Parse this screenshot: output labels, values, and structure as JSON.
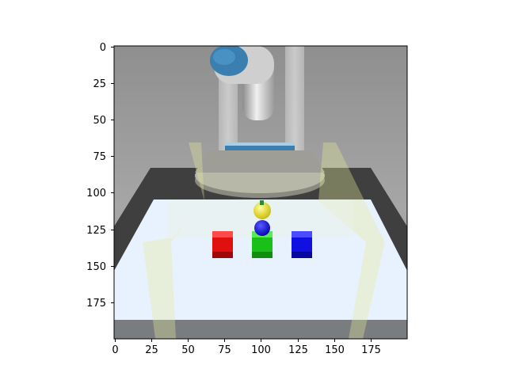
{
  "figure": {
    "kind": "image-plot",
    "scene": "robot arm above a table with colored blocks and spheres"
  },
  "axes": {
    "x_ticks": [
      "0",
      "25",
      "50",
      "75",
      "100",
      "125",
      "150",
      "175"
    ],
    "y_ticks": [
      "0",
      "25",
      "50",
      "75",
      "100",
      "125",
      "150",
      "175"
    ],
    "xlim": [
      0,
      200
    ],
    "ylim": [
      200,
      0
    ]
  },
  "scene_objects": {
    "cubes": [
      {
        "name": "red-cube",
        "color": "#e01010"
      },
      {
        "name": "green-cube",
        "color": "#18c018"
      },
      {
        "name": "blue-cube",
        "color": "#1010e0"
      }
    ],
    "spheres": [
      {
        "name": "yellow-sphere",
        "color": "#f0e010"
      },
      {
        "name": "blue-sphere",
        "color": "#1010e0"
      }
    ],
    "table_color": "#e8f2ff",
    "arm_color": "#3a7fb0"
  }
}
